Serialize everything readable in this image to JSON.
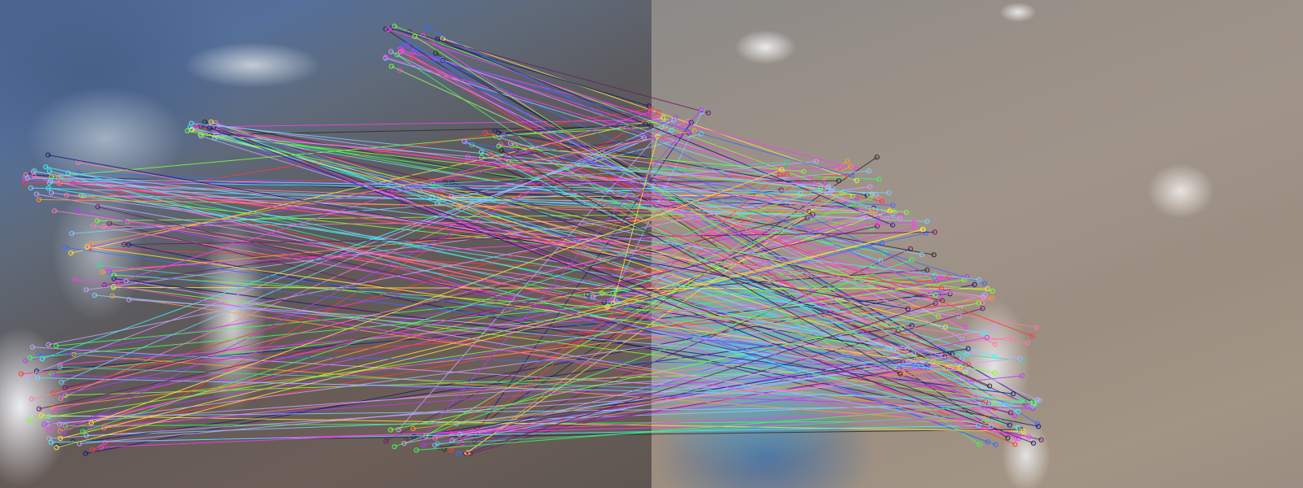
{
  "image": {
    "description_type": "feature-matching-visualization",
    "panels": [
      "left-photo",
      "right-photo"
    ],
    "match_line_colors": [
      "#ff3b3b",
      "#3bff5a",
      "#3b6bff",
      "#ff3bf0",
      "#3bf6ff",
      "#ffe53b",
      "#b43bff",
      "#ff9a3b",
      "#7dff3b",
      "#1b1b7a",
      "#6a1b6a",
      "#2b2b2b",
      "#3bd9a6",
      "#c8a2ff",
      "#ff7aa8",
      "#7ad0ff"
    ]
  }
}
